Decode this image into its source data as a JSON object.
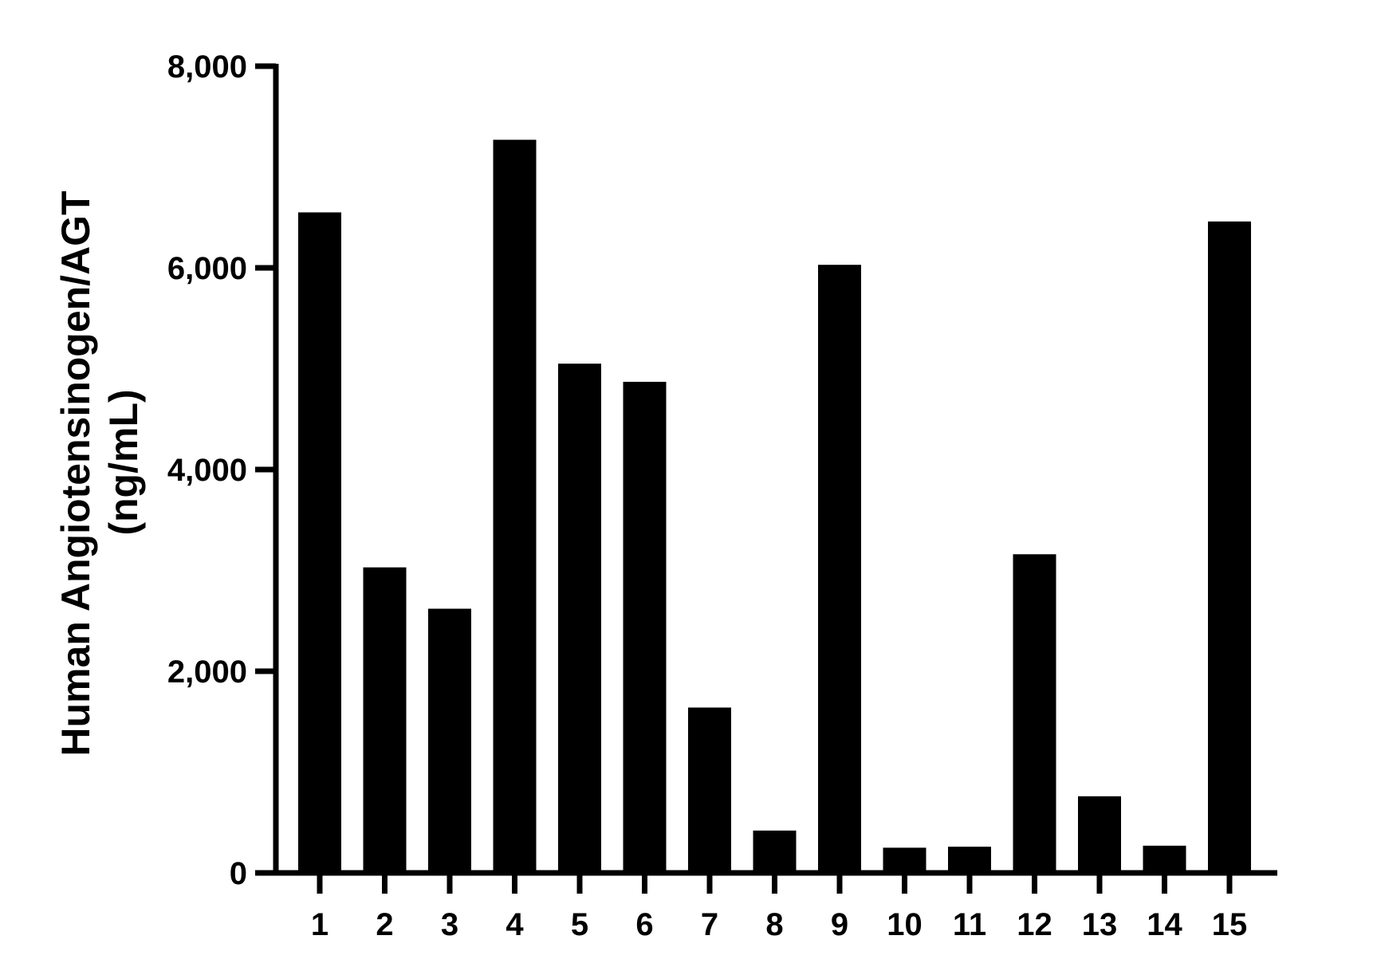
{
  "chart_data": {
    "type": "bar",
    "categories": [
      "1",
      "2",
      "3",
      "4",
      "5",
      "6",
      "7",
      "8",
      "9",
      "10",
      "11",
      "12",
      "13",
      "14",
      "15"
    ],
    "values": [
      6550,
      3030,
      2620,
      7270,
      5050,
      4870,
      1640,
      420,
      6030,
      250,
      260,
      3160,
      760,
      270,
      6460
    ],
    "ylabel_line1": "Human Angiotensinogen/AGT",
    "ylabel_line2": "(ng/mL)",
    "ylim": [
      0,
      8000
    ],
    "yticks": [
      0,
      2000,
      4000,
      6000,
      8000
    ],
    "ytick_labels": [
      "0",
      "2,000",
      "4,000",
      "6,000",
      "8,000"
    ],
    "bar_color": "#000000",
    "grid": false,
    "legend": "none"
  }
}
